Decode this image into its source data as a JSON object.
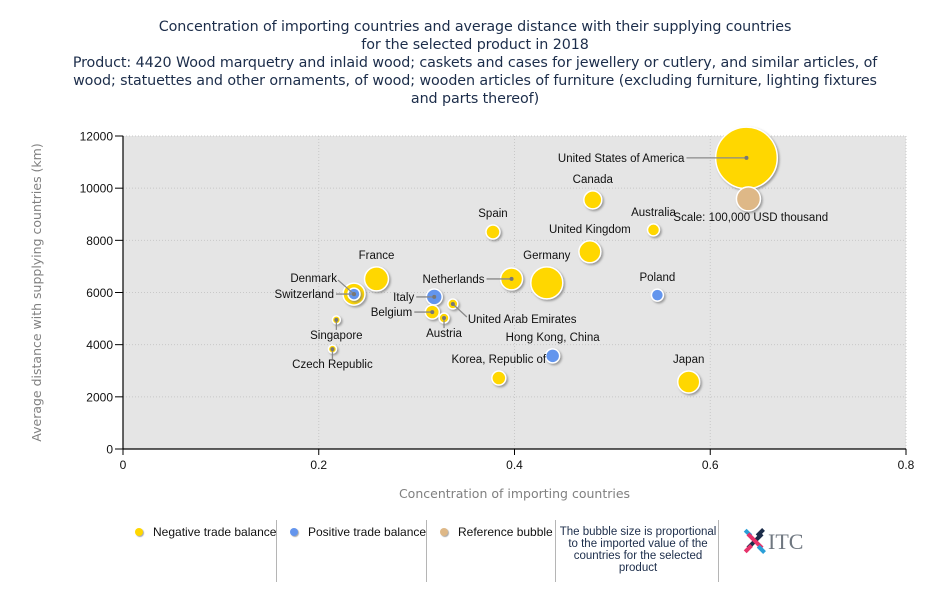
{
  "title": {
    "lines": [
      "Concentration of importing countries and average distance with their supplying countries",
      "for the selected product in 2018",
      "Product: 4420 Wood marquetry and inlaid wood; caskets and cases for jewellery or cutlery, and similar articles, of",
      "wood; statuettes and other ornaments, of wood; wooden articles of furniture (excluding furniture, lighting fixtures",
      "and parts thereof)"
    ]
  },
  "colors": {
    "negative": "#ffd700",
    "positive": "#6495ed",
    "reference": "#deb887",
    "plot_bg": "#e5e5e5",
    "title": "#1c2d4a",
    "axis_label": "#808080"
  },
  "chart_data": {
    "type": "scatter",
    "subtype": "bubble",
    "xlabel": "Concentration of importing countries",
    "ylabel": "Average distance with supplying countries (km)",
    "xlim": [
      0,
      0.8
    ],
    "ylim": [
      0,
      12000
    ],
    "x_ticks": [
      "0",
      "0.2",
      "0.4",
      "0.6",
      "0.8"
    ],
    "y_ticks": [
      "0",
      "2000",
      "4000",
      "6000",
      "8000",
      "10000",
      "12000"
    ],
    "grid": true,
    "size_note": "Scale: 100,000 USD thousand",
    "points": [
      {
        "name": "United States of America",
        "x": 0.637,
        "y": 11160,
        "size": 6.6,
        "type": "negative",
        "label_pos": "left-leader"
      },
      {
        "name": "Scale: 100,000 USD thousand",
        "x": 0.639,
        "y": 9590,
        "size": 1.0,
        "type": "reference",
        "label_pos": "below-right"
      },
      {
        "name": "Canada",
        "x": 0.48,
        "y": 9550,
        "size": 0.56,
        "type": "negative",
        "label_pos": "above"
      },
      {
        "name": "Spain",
        "x": 0.378,
        "y": 8320,
        "size": 0.34,
        "type": "negative",
        "label_pos": "above"
      },
      {
        "name": "Australia",
        "x": 0.542,
        "y": 8400,
        "size": 0.25,
        "type": "negative",
        "label_pos": "above"
      },
      {
        "name": "United Kingdom",
        "x": 0.477,
        "y": 7560,
        "size": 0.84,
        "type": "negative",
        "label_pos": "above"
      },
      {
        "name": "Germany",
        "x": 0.433,
        "y": 6370,
        "size": 1.78,
        "type": "negative",
        "label_pos": "above"
      },
      {
        "name": "Netherlands",
        "x": 0.397,
        "y": 6520,
        "size": 0.84,
        "type": "negative",
        "label_pos": "left-leader"
      },
      {
        "name": "France",
        "x": 0.259,
        "y": 6520,
        "size": 1.0,
        "type": "negative",
        "label_pos": "above"
      },
      {
        "name": "Denmark",
        "x": 0.236,
        "y": 5940,
        "size": 0.84,
        "type": "negative",
        "label_pos": "upper-left-leader"
      },
      {
        "name": "Switzerland",
        "x": 0.236,
        "y": 5940,
        "size": 0.25,
        "type": "positive",
        "label_pos": "left-leader"
      },
      {
        "name": "Italy",
        "x": 0.318,
        "y": 5830,
        "size": 0.44,
        "type": "positive",
        "label_pos": "left-leader"
      },
      {
        "name": "Belgium",
        "x": 0.316,
        "y": 5250,
        "size": 0.34,
        "type": "negative",
        "label_pos": "left-leader"
      },
      {
        "name": "Austria",
        "x": 0.328,
        "y": 5020,
        "size": 0.17,
        "type": "negative",
        "label_pos": "below-leader"
      },
      {
        "name": "United Arab Emirates",
        "x": 0.337,
        "y": 5560,
        "size": 0.17,
        "type": "negative",
        "label_pos": "lower-right-leader"
      },
      {
        "name": "Singapore",
        "x": 0.218,
        "y": 4950,
        "size": 0.11,
        "type": "negative",
        "label_pos": "below-leader"
      },
      {
        "name": "Czech Republic",
        "x": 0.214,
        "y": 3830,
        "size": 0.11,
        "type": "negative",
        "label_pos": "below-leader"
      },
      {
        "name": "Hong Kong, China",
        "x": 0.439,
        "y": 3570,
        "size": 0.34,
        "type": "positive",
        "label_pos": "above"
      },
      {
        "name": "Korea, Republic of",
        "x": 0.384,
        "y": 2720,
        "size": 0.34,
        "type": "negative",
        "label_pos": "above"
      },
      {
        "name": "Poland",
        "x": 0.546,
        "y": 5900,
        "size": 0.25,
        "type": "positive",
        "label_pos": "above"
      },
      {
        "name": "Japan",
        "x": 0.578,
        "y": 2570,
        "size": 0.84,
        "type": "negative",
        "label_pos": "above"
      }
    ]
  },
  "legend": {
    "items": [
      {
        "label": "Negative trade balance",
        "type": "negative"
      },
      {
        "label": "Positive trade balance",
        "type": "positive"
      },
      {
        "label": "Reference bubble",
        "type": "reference"
      }
    ],
    "note": "The bubble size is proportional to the imported value of the countries for the selected product",
    "logo_text": "ITC"
  }
}
